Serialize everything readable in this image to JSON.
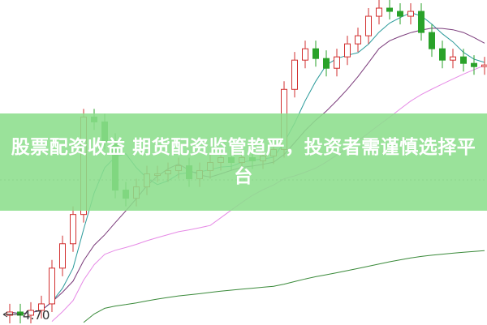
{
  "headline": "股票配资收益 期货配资监管趋严，投资者需谨慎选择平台",
  "colors": {
    "up": "#d22f2f",
    "down": "#2aa22a",
    "banner": "#8cde8c",
    "ma5": "#2a9a9a",
    "ma10": "#7a3a7a",
    "ma20": "#e68ae6",
    "ma60": "#3a8a3a"
  },
  "chart_data": {
    "type": "candlestick",
    "price_label": "4.70",
    "ylim": [
      4.65,
      6.65
    ],
    "grid": "single dotted horizontal line",
    "closes": [
      4.73,
      4.71,
      4.74,
      4.78,
      5.0,
      5.15,
      5.33,
      5.93,
      5.9,
      5.78,
      5.48,
      5.43,
      5.5,
      5.58,
      5.58,
      5.6,
      5.63,
      5.55,
      5.6,
      5.65,
      5.68,
      5.65,
      5.68,
      5.66,
      5.69,
      5.73,
      6.1,
      6.28,
      6.35,
      6.29,
      6.23,
      6.3,
      6.38,
      6.43,
      6.55,
      6.6,
      6.58,
      6.55,
      6.58,
      6.45,
      6.35,
      6.28,
      6.3,
      6.26,
      6.24,
      6.25
    ],
    "moving_averages": [
      5,
      10,
      20,
      60
    ]
  }
}
